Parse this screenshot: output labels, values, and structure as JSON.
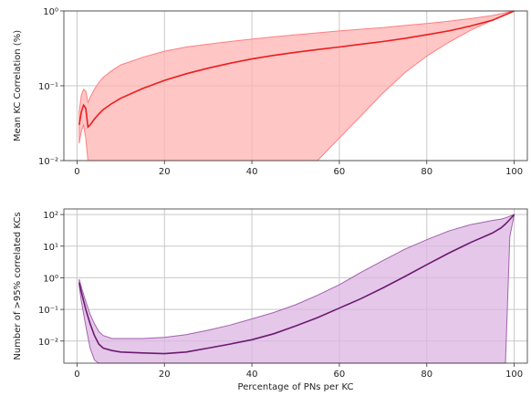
{
  "chart_data": [
    {
      "type": "area",
      "title": "",
      "xlabel": "",
      "ylabel": "Mean KC Correlation (%)",
      "xlim": [
        -3,
        103
      ],
      "ylim": [
        0.01,
        1
      ],
      "yscale": "log",
      "grid": true,
      "xticks": [
        0,
        20,
        40,
        60,
        80,
        100
      ],
      "xtick_labels": [
        "0",
        "20",
        "40",
        "60",
        "80",
        "100"
      ],
      "yticks": [
        0.01,
        0.1,
        1
      ],
      "ytick_labels": [
        "10⁻²",
        "10⁻¹",
        "10⁰"
      ],
      "colors": {
        "line": "#ee1c1c",
        "fill": "#ffb3b3",
        "band_edge": "#ff7f7f"
      },
      "x": [
        0.5,
        1,
        1.5,
        2,
        2.5,
        3,
        4,
        5,
        6,
        8,
        10,
        15,
        20,
        25,
        30,
        35,
        40,
        45,
        50,
        55,
        60,
        65,
        70,
        75,
        80,
        85,
        90,
        95,
        100
      ],
      "mean": [
        0.03,
        0.045,
        0.055,
        0.05,
        0.028,
        0.03,
        0.036,
        0.042,
        0.048,
        0.058,
        0.068,
        0.092,
        0.118,
        0.145,
        0.172,
        0.2,
        0.228,
        0.255,
        0.28,
        0.305,
        0.33,
        0.36,
        0.39,
        0.43,
        0.48,
        0.54,
        0.63,
        0.75,
        1.0
      ],
      "upper": [
        0.045,
        0.075,
        0.09,
        0.085,
        0.06,
        0.07,
        0.09,
        0.11,
        0.13,
        0.16,
        0.19,
        0.24,
        0.29,
        0.33,
        0.36,
        0.39,
        0.42,
        0.45,
        0.48,
        0.51,
        0.54,
        0.57,
        0.6,
        0.64,
        0.68,
        0.73,
        0.79,
        0.87,
        1.0
      ],
      "lower": [
        0.017,
        0.025,
        0.03,
        0.02,
        0.01,
        0.01,
        0.01,
        0.01,
        0.01,
        0.01,
        0.01,
        0.01,
        0.01,
        0.01,
        0.01,
        0.01,
        0.01,
        0.01,
        0.01,
        0.01,
        0.02,
        0.04,
        0.08,
        0.15,
        0.25,
        0.38,
        0.55,
        0.75,
        1.0
      ]
    },
    {
      "type": "area",
      "title": "",
      "xlabel": "Percentage of PNs per KC",
      "ylabel": "Number of >95% correlated KCs",
      "xlim": [
        -3,
        103
      ],
      "ylim": [
        0.002,
        150
      ],
      "yscale": "log",
      "grid": true,
      "xticks": [
        0,
        20,
        40,
        60,
        80,
        100
      ],
      "xtick_labels": [
        "0",
        "20",
        "40",
        "60",
        "80",
        "100"
      ],
      "yticks": [
        0.01,
        0.1,
        1,
        10,
        100
      ],
      "ytick_labels": [
        "10⁻²",
        "10⁻¹",
        "10⁰",
        "10¹",
        "10²"
      ],
      "colors": {
        "line": "#6a1b6e",
        "fill": "#dcb4e3",
        "band_edge": "#a361ad"
      },
      "x": [
        0.5,
        1,
        2,
        3,
        4,
        5,
        6,
        8,
        10,
        15,
        20,
        25,
        30,
        35,
        40,
        45,
        50,
        55,
        60,
        65,
        70,
        75,
        80,
        85,
        90,
        95,
        97,
        98,
        99,
        100
      ],
      "mean": [
        0.7,
        0.35,
        0.1,
        0.035,
        0.015,
        0.008,
        0.006,
        0.005,
        0.0045,
        0.0042,
        0.004,
        0.0045,
        0.006,
        0.008,
        0.011,
        0.017,
        0.03,
        0.055,
        0.11,
        0.22,
        0.48,
        1.1,
        2.6,
        6.0,
        13.0,
        26.0,
        38.0,
        50.0,
        70.0,
        100.0
      ],
      "upper": [
        0.9,
        0.5,
        0.18,
        0.07,
        0.035,
        0.02,
        0.015,
        0.012,
        0.012,
        0.012,
        0.013,
        0.016,
        0.022,
        0.032,
        0.05,
        0.08,
        0.14,
        0.28,
        0.6,
        1.5,
        3.5,
        8.0,
        16.0,
        30.0,
        48.0,
        65.0,
        72.0,
        78.0,
        88.0,
        100.0
      ],
      "lower": [
        0.55,
        0.18,
        0.03,
        0.006,
        0.0025,
        0.002,
        0.002,
        0.002,
        0.002,
        0.002,
        0.002,
        0.002,
        0.002,
        0.002,
        0.002,
        0.002,
        0.002,
        0.002,
        0.002,
        0.002,
        0.002,
        0.002,
        0.002,
        0.002,
        0.002,
        0.002,
        0.002,
        0.002,
        20.0,
        100.0
      ]
    }
  ]
}
